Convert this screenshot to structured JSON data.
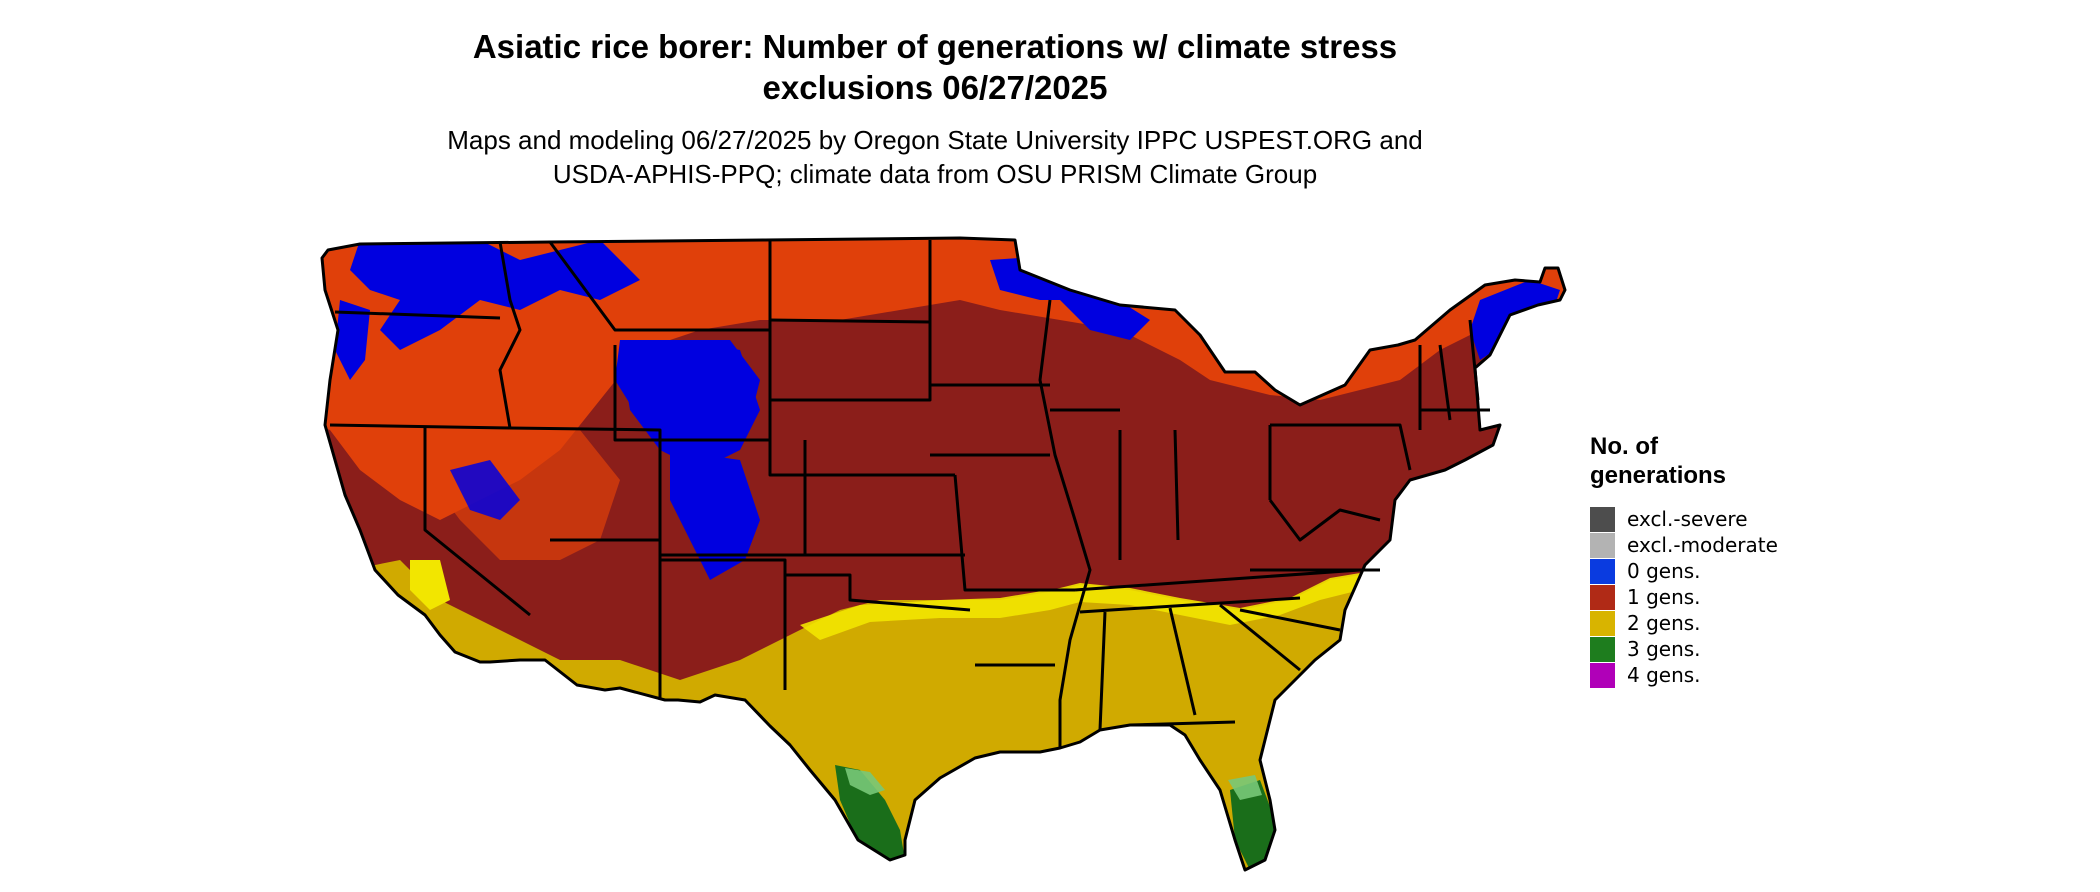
{
  "header": {
    "title_line1": "Asiatic rice borer: Number of generations w/ climate stress",
    "title_line2": "exclusions 06/27/2025",
    "subtitle_line1": "Maps and modeling 06/27/2025 by Oregon State University IPPC USPEST.ORG and",
    "subtitle_line2": "USDA-APHIS-PPQ; climate data from OSU PRISM Climate Group"
  },
  "legend": {
    "title_line1": "No. of",
    "title_line2": "generations",
    "items": [
      {
        "label": "excl.-severe",
        "color": "#4d4d4d"
      },
      {
        "label": "excl.-moderate",
        "color": "#b3b3b3"
      },
      {
        "label": "0 gens.",
        "color": "#0a3be0"
      },
      {
        "label": "1 gens.",
        "color": "#b02a16"
      },
      {
        "label": "2 gens.",
        "color": "#d8b400"
      },
      {
        "label": "3 gens.",
        "color": "#1e7d1e"
      },
      {
        "label": "4 gens.",
        "color": "#b000b8"
      }
    ]
  },
  "map_colors": {
    "background_zone_1gen": "#8b1e1a",
    "warm_1gen": "#e0400a",
    "zone_0gen": "#0000e0",
    "zone_2gen": "#d0aa00",
    "zone_2gen_light": "#f2e600",
    "zone_3gen": "#1a6e1a",
    "zone_3gen_light": "#78c878",
    "borders": "#000000"
  }
}
